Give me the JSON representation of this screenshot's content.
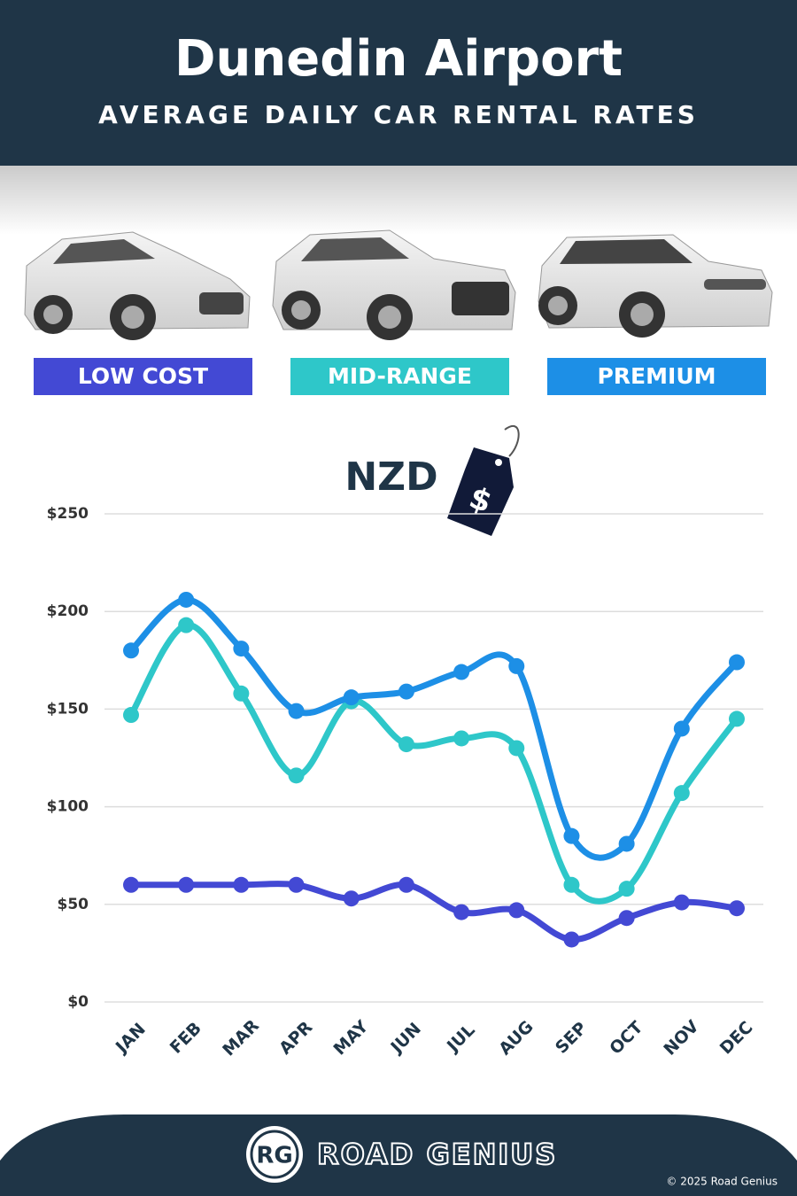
{
  "chart_data": {
    "type": "line",
    "title": "Dunedin Airport",
    "subtitle": "AVERAGE DAILY CAR RENTAL RATES",
    "currency": "NZD",
    "tag_symbol": "$",
    "categories": [
      "JAN",
      "FEB",
      "MAR",
      "APR",
      "MAY",
      "JUN",
      "JUL",
      "AUG",
      "SEP",
      "OCT",
      "NOV",
      "DEC"
    ],
    "series": [
      {
        "name": "LOW COST",
        "color": "#4349d4",
        "values": [
          60,
          60,
          60,
          60,
          53,
          60,
          46,
          47,
          32,
          43,
          51,
          48
        ]
      },
      {
        "name": "MID-RANGE",
        "color": "#2ec7c9",
        "values": [
          147,
          193,
          158,
          116,
          154,
          132,
          135,
          130,
          60,
          58,
          107,
          145
        ]
      },
      {
        "name": "PREMIUM",
        "color": "#1d8fe6",
        "values": [
          180,
          206,
          181,
          149,
          156,
          159,
          169,
          172,
          85,
          81,
          140,
          174
        ]
      }
    ],
    "ylim": [
      0,
      250
    ],
    "yticks": [
      {
        "value": 0,
        "label": "$0"
      },
      {
        "value": 50,
        "label": "$50"
      },
      {
        "value": 100,
        "label": "$100"
      },
      {
        "value": 150,
        "label": "$150"
      },
      {
        "value": 200,
        "label": "$200"
      },
      {
        "value": 250,
        "label": "$250"
      }
    ],
    "grid": true
  },
  "footer": {
    "logo": "RG",
    "brand": "ROAD GENIUS",
    "copyright": "© 2025 Road Genius"
  }
}
